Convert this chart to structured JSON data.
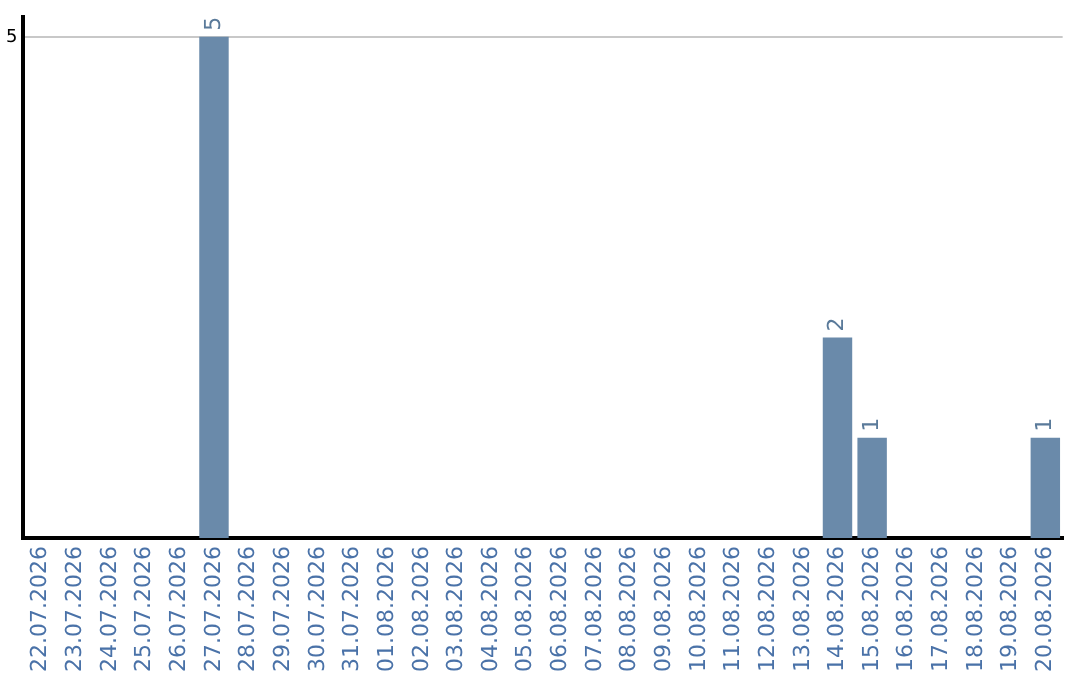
{
  "chart_data": {
    "type": "bar",
    "categories": [
      "22.07.2026",
      "23.07.2026",
      "24.07.2026",
      "25.07.2026",
      "26.07.2026",
      "27.07.2026",
      "28.07.2026",
      "29.07.2026",
      "30.07.2026",
      "31.07.2026",
      "01.08.2026",
      "02.08.2026",
      "03.08.2026",
      "04.08.2026",
      "05.08.2026",
      "06.08.2026",
      "07.08.2026",
      "08.08.2026",
      "09.08.2026",
      "10.08.2026",
      "11.08.2026",
      "12.08.2026",
      "13.08.2026",
      "14.08.2026",
      "15.08.2026",
      "16.08.2026",
      "17.08.2026",
      "18.08.2026",
      "19.08.2026",
      "20.08.2026"
    ],
    "values": [
      0,
      0,
      0,
      0,
      0,
      5,
      0,
      0,
      0,
      0,
      0,
      0,
      0,
      0,
      0,
      0,
      0,
      0,
      0,
      0,
      0,
      0,
      0,
      2,
      1,
      0,
      0,
      0,
      0,
      1
    ],
    "value_labels": [
      null,
      null,
      null,
      null,
      null,
      "5",
      null,
      null,
      null,
      null,
      null,
      null,
      null,
      null,
      null,
      null,
      null,
      null,
      null,
      null,
      null,
      null,
      null,
      "2",
      "1",
      null,
      null,
      null,
      null,
      "1"
    ],
    "color": "#6a8aaa",
    "ylim": [
      0,
      5.2
    ],
    "yticks": [
      5
    ],
    "grid": "y",
    "legend": false
  }
}
